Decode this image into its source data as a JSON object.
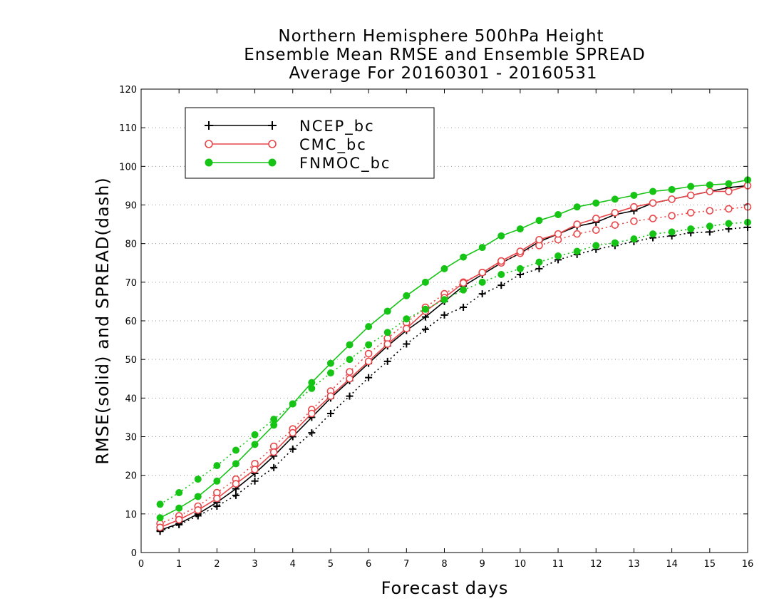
{
  "chart_data": {
    "type": "line",
    "title_lines": [
      "Northern Hemisphere 500hPa Height",
      "Ensemble Mean RMSE and Ensemble SPREAD",
      "Average For 20160301 - 20160531"
    ],
    "xlabel": "Forecast days",
    "ylabel": "RMSE(solid) and SPREAD(dash)",
    "xlim": [
      0,
      16
    ],
    "ylim": [
      0,
      120
    ],
    "xticks": [
      0,
      1,
      2,
      3,
      4,
      5,
      6,
      7,
      8,
      9,
      10,
      11,
      12,
      13,
      14,
      15,
      16
    ],
    "yticks": [
      0,
      10,
      20,
      30,
      40,
      50,
      60,
      70,
      80,
      90,
      100,
      110,
      120
    ],
    "grid": "horizontal dotted",
    "legend_position": "top-left",
    "x": [
      0.5,
      1,
      1.5,
      2,
      2.5,
      3,
      3.5,
      4,
      4.5,
      5,
      5.5,
      6,
      6.5,
      7,
      7.5,
      8,
      8.5,
      9,
      9.5,
      10,
      10.5,
      11,
      11.5,
      12,
      12.5,
      13,
      13.5,
      14,
      14.5,
      15,
      15.5,
      16
    ],
    "series": [
      {
        "name": "NCEP_bc",
        "color": "#000000",
        "marker": "plus",
        "rmse": [
          5.8,
          7.5,
          10.0,
          13.0,
          16.5,
          20.5,
          25.0,
          30.0,
          35.0,
          40.0,
          44.5,
          49.0,
          53.5,
          57.5,
          61.0,
          65.0,
          69.0,
          72.0,
          75.0,
          77.5,
          80.5,
          82.5,
          84.5,
          85.5,
          87.5,
          88.5,
          90.5,
          91.5,
          92.5,
          93.5,
          94.5,
          95.0
        ],
        "spread": [
          5.5,
          7.2,
          9.5,
          12.0,
          14.8,
          18.5,
          22.0,
          26.8,
          31.0,
          36.0,
          40.5,
          45.3,
          49.5,
          54.0,
          57.8,
          61.5,
          63.5,
          67.0,
          69.2,
          72.0,
          73.5,
          75.8,
          77.2,
          78.5,
          79.5,
          80.5,
          81.5,
          82.0,
          82.8,
          83.0,
          83.8,
          84.2
        ]
      },
      {
        "name": "CMC_bc",
        "color": "#e8474a",
        "marker": "open-circle",
        "rmse": [
          6.5,
          8.5,
          11.0,
          14.0,
          17.8,
          21.5,
          26.0,
          31.0,
          36.0,
          40.5,
          45.0,
          49.5,
          54.0,
          58.0,
          62.5,
          66.0,
          69.8,
          72.5,
          75.5,
          78.0,
          81.0,
          82.5,
          85.0,
          86.5,
          88.0,
          89.5,
          90.5,
          91.5,
          92.5,
          93.5,
          93.5,
          95.0
        ],
        "spread": [
          7.5,
          9.5,
          12.0,
          15.5,
          19.0,
          23.0,
          27.5,
          32.0,
          37.0,
          41.8,
          46.8,
          51.5,
          55.5,
          59.5,
          63.5,
          67.0,
          70.0,
          72.5,
          75.0,
          77.5,
          79.5,
          81.0,
          82.5,
          83.5,
          84.8,
          85.8,
          86.5,
          87.2,
          88.0,
          88.5,
          89.0,
          89.5
        ]
      },
      {
        "name": "FNMOC_bc",
        "color": "#16c416",
        "marker": "filled-circle",
        "rmse": [
          9.0,
          11.5,
          14.5,
          18.5,
          23.0,
          28.0,
          33.0,
          38.5,
          44.0,
          49.0,
          53.8,
          58.5,
          62.5,
          66.5,
          70.0,
          73.5,
          76.5,
          79.0,
          82.0,
          83.8,
          86.0,
          87.5,
          89.5,
          90.5,
          91.5,
          92.5,
          93.5,
          94.0,
          94.8,
          95.2,
          95.5,
          96.5
        ],
        "spread": [
          12.5,
          15.5,
          19.0,
          22.5,
          26.5,
          30.5,
          34.5,
          38.5,
          42.5,
          46.5,
          50.0,
          53.8,
          57.0,
          60.5,
          63.0,
          65.5,
          68.0,
          70.0,
          72.0,
          73.5,
          75.2,
          76.8,
          78.0,
          79.5,
          80.2,
          81.2,
          82.5,
          83.0,
          83.8,
          84.5,
          85.2,
          85.5
        ]
      }
    ]
  }
}
